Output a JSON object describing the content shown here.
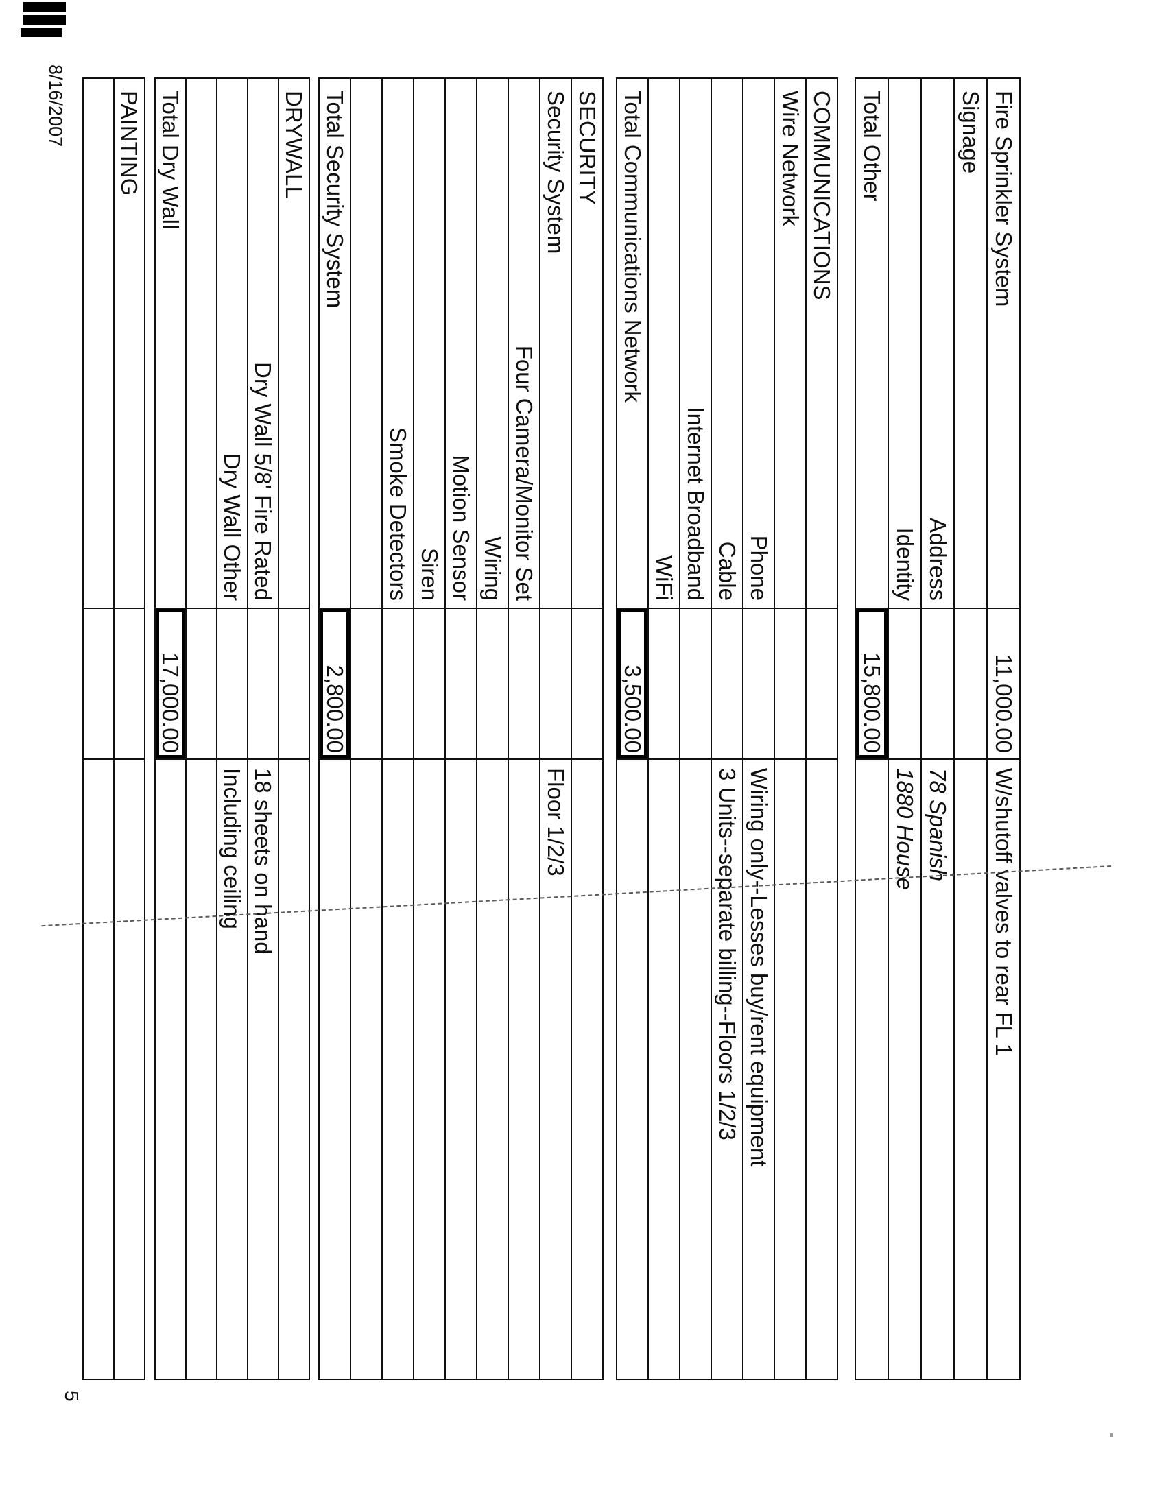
{
  "page": {
    "footer_date": "8/16/2007",
    "page_number": "5"
  },
  "colors": {
    "ink": "#111111",
    "paper": "#ffffff"
  },
  "tables": [
    {
      "name": "other-items",
      "rows": [
        {
          "label": "Fire Sprinkler System",
          "indent": false,
          "amount": "11,000.00",
          "amount_boxed": false,
          "comment": "W/shutoff valves to rear FL 1",
          "comment_italic": false
        },
        {
          "label": "Signage",
          "indent": false,
          "amount": "",
          "amount_boxed": false,
          "comment": "",
          "comment_italic": false
        },
        {
          "label": "Address",
          "indent": true,
          "amount": "",
          "amount_boxed": false,
          "comment": "78 Spanish",
          "comment_italic": true
        },
        {
          "label": "Identity",
          "indent": true,
          "amount": "",
          "amount_boxed": false,
          "comment": "1880 House",
          "comment_italic": true
        },
        {
          "label": "Total Other",
          "indent": false,
          "amount": "15,800.00",
          "amount_boxed": true,
          "comment": "",
          "comment_italic": false
        }
      ]
    },
    {
      "name": "communications",
      "rows": [
        {
          "label": "COMMUNICATIONS",
          "indent": false,
          "amount": "",
          "amount_boxed": false,
          "comment": "",
          "comment_italic": false
        },
        {
          "label": "Wire Network",
          "indent": false,
          "amount": "",
          "amount_boxed": false,
          "comment": "",
          "comment_italic": false
        },
        {
          "label": "Phone",
          "indent": true,
          "amount": "",
          "amount_boxed": false,
          "comment": "Wiring only--Lesses buy/rent equipment",
          "comment_italic": false
        },
        {
          "label": "Cable",
          "indent": true,
          "amount": "",
          "amount_boxed": false,
          "comment": "3 Units--separate billing--Floors 1/2/3",
          "comment_italic": false
        },
        {
          "label": "Internet Broadband",
          "indent": true,
          "amount": "",
          "amount_boxed": false,
          "comment": "",
          "comment_italic": false
        },
        {
          "label": "WiFi",
          "indent": true,
          "amount": "",
          "amount_boxed": false,
          "comment": "",
          "comment_italic": false
        },
        {
          "label": "Total Communications Network",
          "indent": false,
          "amount": "3,500.00",
          "amount_boxed": true,
          "comment": "",
          "comment_italic": false
        }
      ]
    },
    {
      "name": "security",
      "rows": [
        {
          "label": "SECURITY",
          "indent": false,
          "amount": "",
          "amount_boxed": false,
          "comment": "",
          "comment_italic": false
        },
        {
          "label": "Security System",
          "indent": false,
          "amount": "",
          "amount_boxed": false,
          "comment": "Floor 1/2/3",
          "comment_italic": false
        },
        {
          "label": "Four Camera/Monitor Set",
          "indent": true,
          "amount": "",
          "amount_boxed": false,
          "comment": "",
          "comment_italic": false
        },
        {
          "label": "Wiring",
          "indent": true,
          "amount": "",
          "amount_boxed": false,
          "comment": "",
          "comment_italic": false
        },
        {
          "label": "Motion Sensor",
          "indent": true,
          "amount": "",
          "amount_boxed": false,
          "comment": "",
          "comment_italic": false
        },
        {
          "label": "Siren",
          "indent": true,
          "amount": "",
          "amount_boxed": false,
          "comment": "",
          "comment_italic": false
        },
        {
          "label": "Smoke Detectors",
          "indent": true,
          "amount": "",
          "amount_boxed": false,
          "comment": "",
          "comment_italic": false
        },
        {
          "label": "",
          "indent": false,
          "amount": "",
          "amount_boxed": false,
          "comment": "",
          "comment_italic": false
        },
        {
          "label": "Total Security System",
          "indent": false,
          "amount": "2,800.00",
          "amount_boxed": true,
          "comment": "",
          "comment_italic": false
        }
      ]
    },
    {
      "name": "drywall",
      "rows": [
        {
          "label": "DRYWALL",
          "indent": false,
          "amount": "",
          "amount_boxed": false,
          "comment": "",
          "comment_italic": false
        },
        {
          "label": "Dry Wall 5/8' Fire Rated",
          "indent": true,
          "amount": "",
          "amount_boxed": false,
          "comment": "18 sheets on hand",
          "comment_italic": false
        },
        {
          "label": "Dry Wall Other",
          "indent": true,
          "amount": "",
          "amount_boxed": false,
          "comment": "Including ceiling",
          "comment_italic": false
        },
        {
          "label": "",
          "indent": false,
          "amount": "",
          "amount_boxed": false,
          "comment": "",
          "comment_italic": false
        },
        {
          "label": "Total Dry Wall",
          "indent": false,
          "amount": "17,000.00",
          "amount_boxed": true,
          "comment": "",
          "comment_italic": false
        }
      ]
    },
    {
      "name": "painting",
      "rows": [
        {
          "label": "PAINTING",
          "indent": false,
          "amount": "",
          "amount_boxed": false,
          "comment": "",
          "comment_italic": false
        },
        {
          "label": "",
          "indent": false,
          "amount": "",
          "amount_boxed": false,
          "comment": "",
          "comment_italic": false
        }
      ]
    }
  ]
}
